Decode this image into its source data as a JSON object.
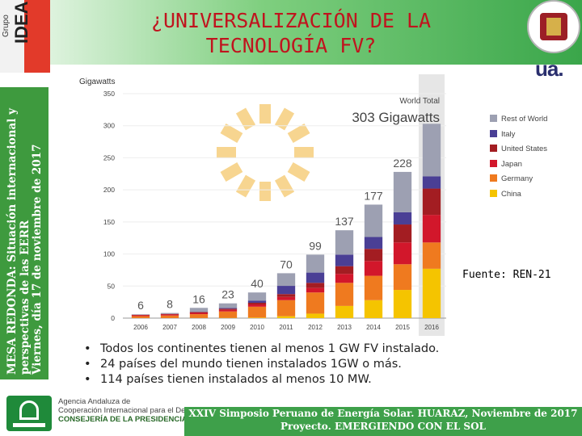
{
  "header": {
    "title_line1": "¿UNIVERSALIZACIÓN DE LA",
    "title_line2": "TECNOLOGÍA FV?",
    "logo_left_grupo": "Grupo",
    "logo_left_idea": "IDEA",
    "logo_right": "ua."
  },
  "sidebar": {
    "line1": "MESA REDONDA: Situación internacional y",
    "line2": "perspectivas de las EERR",
    "line3": "Viernes, día 17 de noviembre de 2017"
  },
  "source_note": "Fuente: REN-21",
  "bullets": [
    "Todos los continentes tienen al menos 1 GW FV instalado.",
    "24 países del mundo tienen instalados 1GW o más.",
    "114 países tienen instalados al menos 10 MW."
  ],
  "footer": {
    "agency_line1": "Agencia Andaluza de",
    "agency_line2": "Cooperación Internacional para el Desarrollo",
    "agency_line3": "CONSEJERÍA DE LA PRESIDENCIA",
    "band_line1": "XXIV Simposio Peruano de Energía Solar. HUARAZ, Noviembre de 2017",
    "band_line2": "Proyecto. EMERGIENDO CON EL SOL"
  },
  "colors": {
    "title": "#c0141e",
    "green_band": "#3e9a3e",
    "highlight_column": "#e3e3e3"
  },
  "chart_data": {
    "type": "bar",
    "stacked": true,
    "ylabel": "Gigawatts",
    "ylim": [
      0,
      350
    ],
    "yticks": [
      0,
      50,
      100,
      150,
      200,
      250,
      300,
      350
    ],
    "categories": [
      "2006",
      "2007",
      "2008",
      "2009",
      "2010",
      "2011",
      "2012",
      "2013",
      "2014",
      "2015",
      "2016"
    ],
    "totals": [
      6,
      8,
      16,
      23,
      40,
      70,
      99,
      137,
      177,
      228,
      303
    ],
    "total_labels": [
      "6",
      "8",
      "16",
      "23",
      "40",
      "70",
      "99",
      "137",
      "177",
      "228",
      ""
    ],
    "annotation_label": "World Total",
    "annotation_value": "303 Gigawatts",
    "highlight_category": "2016",
    "legend_position": "right",
    "series": [
      {
        "name": "China",
        "color": "#f5c400",
        "values": [
          0.1,
          0.1,
          0.2,
          0.4,
          0.8,
          3,
          7,
          19,
          28,
          44,
          77
        ]
      },
      {
        "name": "Germany",
        "color": "#ef7a1f",
        "values": [
          3,
          4,
          6,
          10,
          17,
          25,
          33,
          36,
          38,
          40,
          41
        ]
      },
      {
        "name": "Japan",
        "color": "#d2172b",
        "values": [
          1.5,
          1.7,
          2,
          2.6,
          3.6,
          5,
          7,
          14,
          23,
          34,
          43
        ]
      },
      {
        "name": "United States",
        "color": "#a31d22",
        "values": [
          0.6,
          0.8,
          1.2,
          1.6,
          2.5,
          4.5,
          8,
          12,
          19,
          28,
          41
        ]
      },
      {
        "name": "Italy",
        "color": "#4a3f95",
        "values": [
          0.1,
          0.1,
          0.4,
          1.1,
          3.5,
          12.8,
          16,
          18,
          18.5,
          19,
          19
        ]
      },
      {
        "name": "Rest of World",
        "color": "#9da0b2",
        "values": [
          0.7,
          1.3,
          6.2,
          7.3,
          12.6,
          19.7,
          28,
          38,
          50.5,
          63,
          82
        ]
      }
    ]
  }
}
